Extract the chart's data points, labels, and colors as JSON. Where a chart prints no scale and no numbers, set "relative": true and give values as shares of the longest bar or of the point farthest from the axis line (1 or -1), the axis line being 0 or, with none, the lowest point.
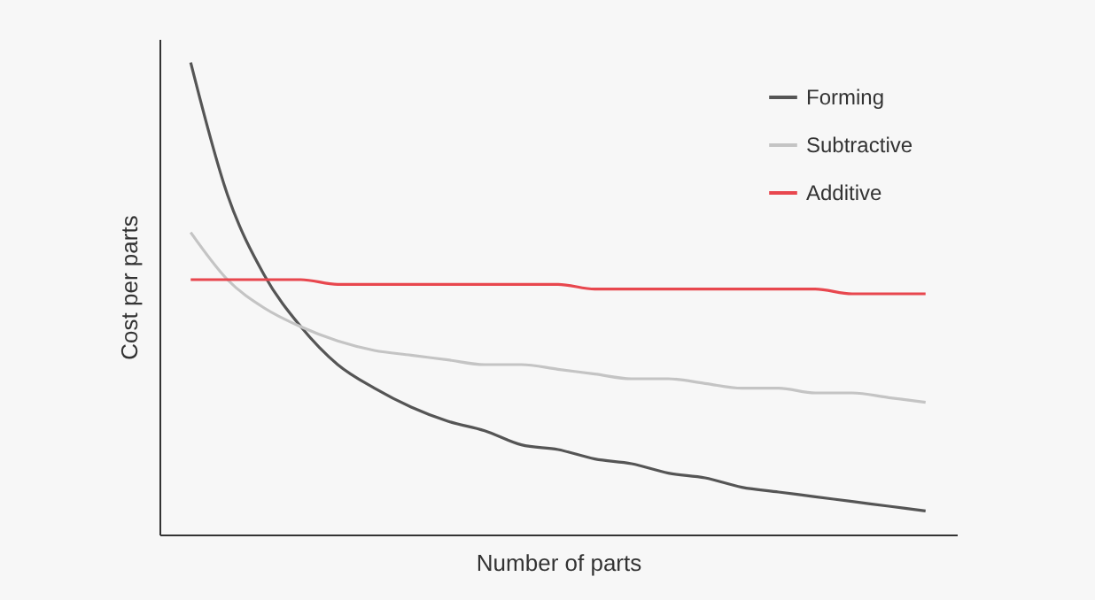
{
  "chart_data": {
    "type": "line",
    "relative": true,
    "xlabel": "Number of parts",
    "ylabel": "Cost per parts",
    "legend": "top right",
    "grid": false,
    "categories": [
      null,
      null,
      null,
      null,
      null,
      null,
      null,
      null,
      null,
      null,
      null,
      null,
      null,
      null,
      null,
      null,
      null,
      null,
      null,
      null,
      null
    ],
    "series": [
      {
        "name": "Forming",
        "color": "#555555",
        "values": [
          1,
          0.72,
          0.55,
          0.44,
          0.36,
          0.31,
          0.27,
          0.24,
          0.22,
          0.19,
          0.18,
          0.16,
          0.15,
          0.13,
          0.12,
          0.1,
          0.09,
          0.08,
          0.07,
          0.06,
          0.05
        ]
      },
      {
        "name": "Subtractive",
        "color": "#c4c4c4",
        "values": [
          0.64,
          0.54,
          0.48,
          0.44,
          0.41,
          0.39,
          0.38,
          0.37,
          0.36,
          0.36,
          0.35,
          0.34,
          0.33,
          0.33,
          0.32,
          0.31,
          0.31,
          0.3,
          0.3,
          0.29,
          0.28
        ]
      },
      {
        "name": "Additive",
        "color": "#e8474e",
        "values": [
          0.54,
          0.54,
          0.54,
          0.54,
          0.53,
          0.53,
          0.53,
          0.53,
          0.53,
          0.53,
          0.53,
          0.52,
          0.52,
          0.52,
          0.52,
          0.52,
          0.52,
          0.52,
          0.51,
          0.51,
          0.51
        ]
      }
    ]
  }
}
